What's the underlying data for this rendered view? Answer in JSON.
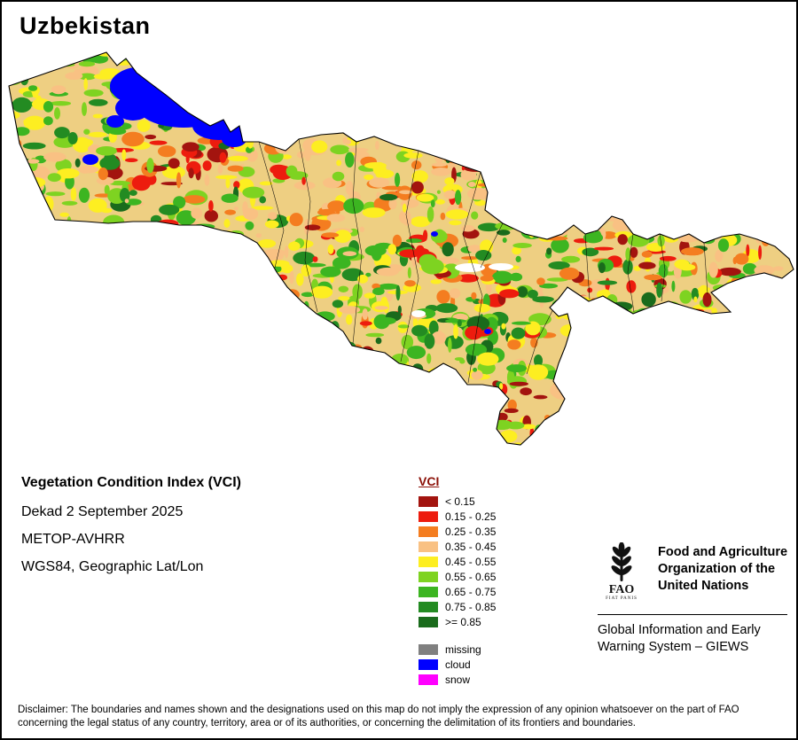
{
  "page": {
    "title": "Uzbekistan",
    "background": "#ffffff",
    "border_color": "#000000"
  },
  "info": {
    "product": "Vegetation Condition Index (VCI)",
    "dekad": "Dekad 2 September 2025",
    "sensor": "METOP-AVHRR",
    "projection": "WGS84, Geographic Lat/Lon"
  },
  "legend": {
    "title": "VCI",
    "title_color": "#8b1007",
    "vci_classes": [
      {
        "label": "< 0.15",
        "color": "#a3140f"
      },
      {
        "label": "0.15 - 0.25",
        "color": "#ed1c0e"
      },
      {
        "label": "0.25 - 0.35",
        "color": "#f47d20"
      },
      {
        "label": "0.35 - 0.45",
        "color": "#f9c183"
      },
      {
        "label": "0.45 - 0.55",
        "color": "#fdee21"
      },
      {
        "label": "0.55 - 0.65",
        "color": "#7ed321"
      },
      {
        "label": "0.65 - 0.75",
        "color": "#3cb521"
      },
      {
        "label": "0.75 - 0.85",
        "color": "#238b22"
      },
      {
        "label": ">= 0.85",
        "color": "#1a6b1c"
      }
    ],
    "overlays": [
      {
        "label": "missing",
        "color": "#808080"
      },
      {
        "label": "cloud",
        "color": "#0000ff"
      },
      {
        "label": "snow",
        "color": "#ff00ff"
      }
    ]
  },
  "fao": {
    "org_name": "Food and Agriculture Organization of the United Nations",
    "giews": "Global Information and Early Warning System – GIEWS",
    "logo_motto": "FAO"
  },
  "disclaimer": "Disclaimer: The boundaries and names shown and the designations used on this map do not imply the expression of any opinion whatsoever on the part of FAO concerning the legal status of any country, territory, area or of its authorities, or concerning the delimitation of its frontiers and boundaries."
}
